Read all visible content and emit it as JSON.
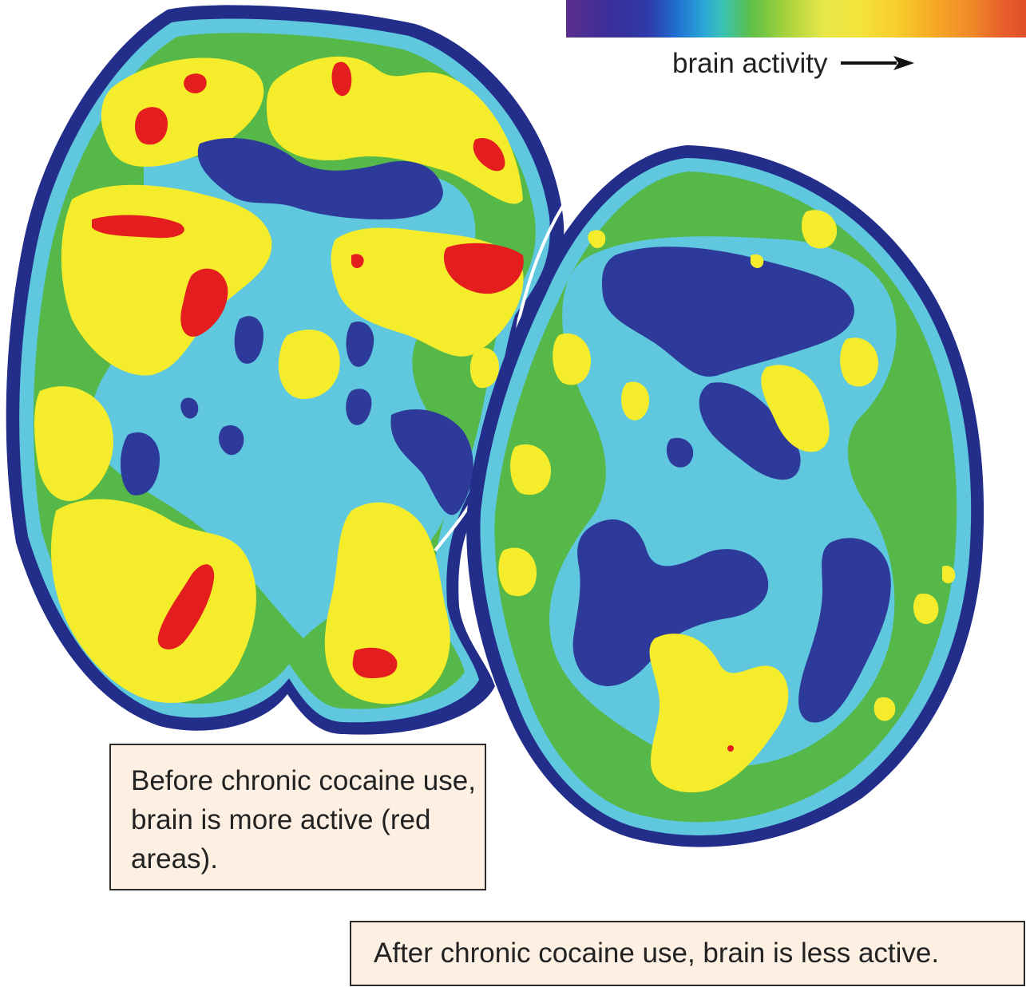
{
  "scale": {
    "label": "brain activity",
    "colors": [
      "#5a2d8c",
      "#2e3ba8",
      "#2aa7d8",
      "#5cc04a",
      "#f4e33a",
      "#f6a925",
      "#e0502a"
    ]
  },
  "captions": {
    "before": "Before chronic cocaine use, brain is more active (red areas).",
    "after": "After chronic cocaine use, brain is less active."
  },
  "activity_colors": {
    "outline": "#232e8a",
    "low": "#2d3a9a",
    "low_mid": "#5fc8de",
    "mid": "#55b848",
    "high": "#f5ec2c",
    "peak": "#e41e1e"
  }
}
